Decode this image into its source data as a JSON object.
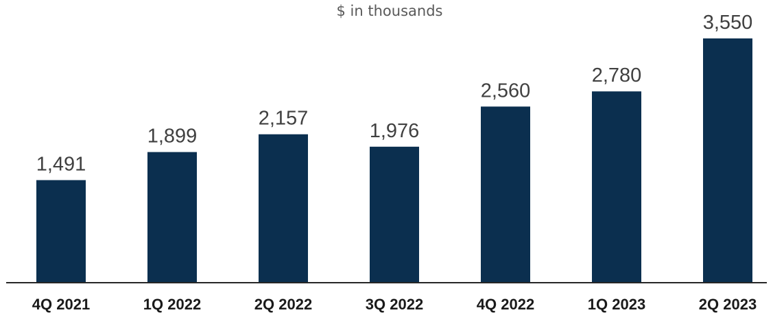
{
  "chart_data": {
    "type": "bar",
    "title": "",
    "subtitle": "$ in thousands",
    "xlabel": "",
    "ylabel": "",
    "categories": [
      "4Q 2021",
      "1Q 2022",
      "2Q 2022",
      "3Q 2022",
      "4Q 2022",
      "1Q 2023",
      "2Q 2023"
    ],
    "values": [
      1491,
      1899,
      2157,
      1976,
      2560,
      2780,
      3550
    ],
    "value_labels": [
      "1,491",
      "1,899",
      "2,157",
      "1,976",
      "2,560",
      "2,780",
      "3,550"
    ],
    "ylim": [
      0,
      3550
    ],
    "grid": false,
    "legend": "none",
    "bar_color": "#0b2f4f",
    "axis_color": "#262626"
  }
}
